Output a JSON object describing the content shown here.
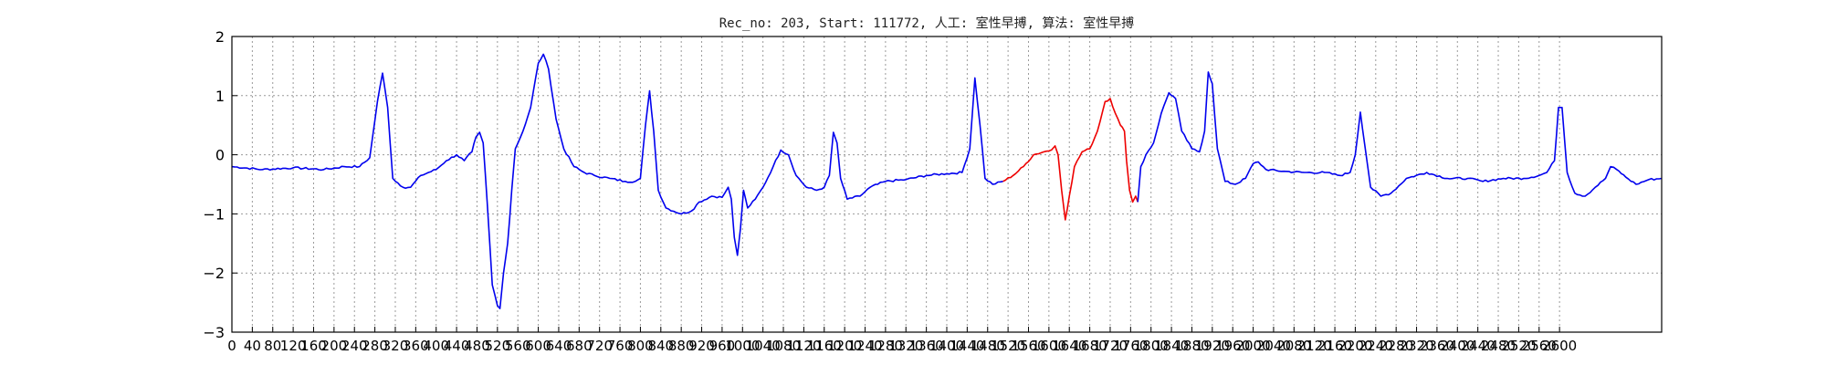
{
  "chart_data": {
    "type": "line",
    "title": "Rec_no: 203, Start: 111772, 人工: 室性早搏, 算法: 室性早搏",
    "xlabel": "",
    "ylabel": "",
    "xlim": [
      0,
      2800
    ],
    "ylim": [
      -3,
      2
    ],
    "y_ticks": [
      2,
      1,
      0,
      -1,
      -2,
      -3
    ],
    "y_tick_labels": [
      "2",
      "1",
      "0",
      "−1",
      "−2",
      "−3"
    ],
    "x_ticks": [
      0,
      40,
      80,
      120,
      160,
      200,
      240,
      280,
      320,
      360,
      400,
      440,
      480,
      520,
      560,
      600,
      640,
      680,
      720,
      760,
      800,
      840,
      880,
      920,
      960,
      1000,
      1040,
      1080,
      1120,
      1160,
      1200,
      1240,
      1280,
      1320,
      1360,
      1400,
      1440,
      1480,
      1520,
      1560,
      1600,
      1640,
      1680,
      1720,
      1760,
      1800,
      1840,
      1880,
      1920,
      1960,
      2000,
      2040,
      2080,
      2120,
      2160,
      2200,
      2240,
      2280,
      2320,
      2360,
      2400,
      2440,
      2480,
      2520,
      2560,
      2600
    ],
    "x_tick_labels": [
      "0",
      "40",
      "80",
      "120",
      "160",
      "200",
      "240",
      "280",
      "320",
      "360",
      "400",
      "440",
      "480",
      "520",
      "560",
      "600",
      "640",
      "680",
      "720",
      "760",
      "800",
      "840",
      "880",
      "920",
      "960",
      "1000",
      "1040",
      "1080",
      "1120",
      "1160",
      "1200",
      "1240",
      "1280",
      "1320",
      "1360",
      "1400",
      "1440",
      "1480",
      "1520",
      "1560",
      "1600",
      "1640",
      "1680",
      "1720",
      "1760",
      "1800",
      "1840",
      "1880",
      "1920",
      "1960",
      "2000",
      "2040",
      "2080",
      "2120",
      "2160",
      "2200",
      "2240",
      "2280",
      "2320",
      "2360",
      "2400",
      "2440",
      "2480",
      "2520",
      "2560",
      "2600"
    ],
    "grid": true,
    "series": [
      {
        "color": "#0000ee",
        "points": [
          [
            0,
            -0.2
          ],
          [
            60,
            -0.25
          ],
          [
            120,
            -0.22
          ],
          [
            180,
            -0.25
          ],
          [
            220,
            -0.2
          ],
          [
            250,
            -0.2
          ],
          [
            270,
            -0.05
          ],
          [
            285,
            0.9
          ],
          [
            295,
            1.38
          ],
          [
            305,
            0.8
          ],
          [
            315,
            -0.4
          ],
          [
            335,
            -0.55
          ],
          [
            350,
            -0.55
          ],
          [
            370,
            -0.35
          ],
          [
            400,
            -0.25
          ],
          [
            420,
            -0.1
          ],
          [
            440,
            0.0
          ],
          [
            455,
            -0.1
          ],
          [
            470,
            0.05
          ],
          [
            478,
            0.3
          ],
          [
            485,
            0.38
          ],
          [
            492,
            0.2
          ],
          [
            500,
            -0.8
          ],
          [
            510,
            -2.2
          ],
          [
            520,
            -2.55
          ],
          [
            525,
            -2.6
          ],
          [
            532,
            -2.0
          ],
          [
            540,
            -1.5
          ],
          [
            548,
            -0.6
          ],
          [
            555,
            0.1
          ],
          [
            570,
            0.4
          ],
          [
            585,
            0.8
          ],
          [
            600,
            1.55
          ],
          [
            610,
            1.7
          ],
          [
            620,
            1.45
          ],
          [
            635,
            0.6
          ],
          [
            650,
            0.1
          ],
          [
            670,
            -0.2
          ],
          [
            690,
            -0.3
          ],
          [
            710,
            -0.35
          ],
          [
            740,
            -0.4
          ],
          [
            770,
            -0.45
          ],
          [
            790,
            -0.45
          ],
          [
            800,
            -0.4
          ],
          [
            810,
            0.5
          ],
          [
            818,
            1.08
          ],
          [
            826,
            0.4
          ],
          [
            835,
            -0.6
          ],
          [
            850,
            -0.9
          ],
          [
            880,
            -1.0
          ],
          [
            900,
            -0.95
          ],
          [
            915,
            -0.8
          ],
          [
            940,
            -0.7
          ],
          [
            960,
            -0.72
          ],
          [
            972,
            -0.55
          ],
          [
            978,
            -0.75
          ],
          [
            984,
            -1.4
          ],
          [
            990,
            -1.7
          ],
          [
            996,
            -1.25
          ],
          [
            1002,
            -0.6
          ],
          [
            1010,
            -0.9
          ],
          [
            1025,
            -0.75
          ],
          [
            1040,
            -0.55
          ],
          [
            1060,
            -0.2
          ],
          [
            1075,
            0.08
          ],
          [
            1090,
            0.0
          ],
          [
            1105,
            -0.35
          ],
          [
            1125,
            -0.55
          ],
          [
            1145,
            -0.6
          ],
          [
            1160,
            -0.55
          ],
          [
            1170,
            -0.35
          ],
          [
            1178,
            0.38
          ],
          [
            1185,
            0.2
          ],
          [
            1192,
            -0.4
          ],
          [
            1205,
            -0.75
          ],
          [
            1230,
            -0.7
          ],
          [
            1250,
            -0.55
          ],
          [
            1280,
            -0.45
          ],
          [
            1320,
            -0.42
          ],
          [
            1360,
            -0.35
          ],
          [
            1400,
            -0.32
          ],
          [
            1430,
            -0.3
          ],
          [
            1445,
            0.1
          ],
          [
            1455,
            1.3
          ],
          [
            1465,
            0.5
          ],
          [
            1475,
            -0.4
          ],
          [
            1490,
            -0.5
          ],
          [
            1510,
            -0.45
          ]
        ]
      },
      {
        "color": "#ee0000",
        "points": [
          [
            1510,
            -0.45
          ],
          [
            1530,
            -0.35
          ],
          [
            1550,
            -0.2
          ],
          [
            1570,
            0.0
          ],
          [
            1590,
            0.05
          ],
          [
            1605,
            0.08
          ],
          [
            1612,
            0.15
          ],
          [
            1618,
            0.0
          ],
          [
            1625,
            -0.6
          ],
          [
            1632,
            -1.1
          ],
          [
            1640,
            -0.7
          ],
          [
            1650,
            -0.2
          ],
          [
            1665,
            0.05
          ],
          [
            1680,
            0.1
          ],
          [
            1695,
            0.4
          ],
          [
            1710,
            0.9
          ],
          [
            1720,
            0.95
          ],
          [
            1730,
            0.7
          ],
          [
            1740,
            0.5
          ],
          [
            1748,
            0.4
          ],
          [
            1752,
            -0.1
          ],
          [
            1758,
            -0.6
          ],
          [
            1764,
            -0.8
          ],
          [
            1770,
            -0.7
          ],
          [
            1774,
            -0.8
          ]
        ]
      },
      {
        "color": "#0000ee",
        "points": [
          [
            1774,
            -0.8
          ],
          [
            1780,
            -0.2
          ],
          [
            1790,
            0.0
          ],
          [
            1805,
            0.2
          ],
          [
            1820,
            0.7
          ],
          [
            1835,
            1.05
          ],
          [
            1848,
            0.95
          ],
          [
            1860,
            0.4
          ],
          [
            1880,
            0.1
          ],
          [
            1895,
            0.05
          ],
          [
            1905,
            0.4
          ],
          [
            1912,
            1.4
          ],
          [
            1920,
            1.2
          ],
          [
            1930,
            0.1
          ],
          [
            1945,
            -0.45
          ],
          [
            1965,
            -0.5
          ],
          [
            1985,
            -0.4
          ],
          [
            2000,
            -0.15
          ],
          [
            2010,
            -0.12
          ],
          [
            2025,
            -0.25
          ],
          [
            2060,
            -0.28
          ],
          [
            2100,
            -0.3
          ],
          [
            2140,
            -0.3
          ],
          [
            2170,
            -0.35
          ],
          [
            2190,
            -0.3
          ],
          [
            2200,
            0.0
          ],
          [
            2210,
            0.72
          ],
          [
            2218,
            0.2
          ],
          [
            2230,
            -0.55
          ],
          [
            2250,
            -0.7
          ],
          [
            2270,
            -0.65
          ],
          [
            2300,
            -0.4
          ],
          [
            2340,
            -0.3
          ],
          [
            2380,
            -0.4
          ],
          [
            2420,
            -0.4
          ],
          [
            2450,
            -0.45
          ],
          [
            2490,
            -0.4
          ],
          [
            2530,
            -0.4
          ],
          [
            2560,
            -0.35
          ],
          [
            2575,
            -0.3
          ],
          [
            2590,
            -0.1
          ],
          [
            2598,
            0.8
          ],
          [
            2605,
            0.8
          ],
          [
            2615,
            -0.3
          ],
          [
            2630,
            -0.65
          ],
          [
            2650,
            -0.7
          ],
          [
            2670,
            -0.55
          ],
          [
            2690,
            -0.4
          ],
          [
            2700,
            -0.2
          ],
          [
            2712,
            -0.25
          ],
          [
            2730,
            -0.38
          ],
          [
            2750,
            -0.5
          ],
          [
            2775,
            -0.42
          ],
          [
            2800,
            -0.4
          ]
        ]
      }
    ]
  }
}
